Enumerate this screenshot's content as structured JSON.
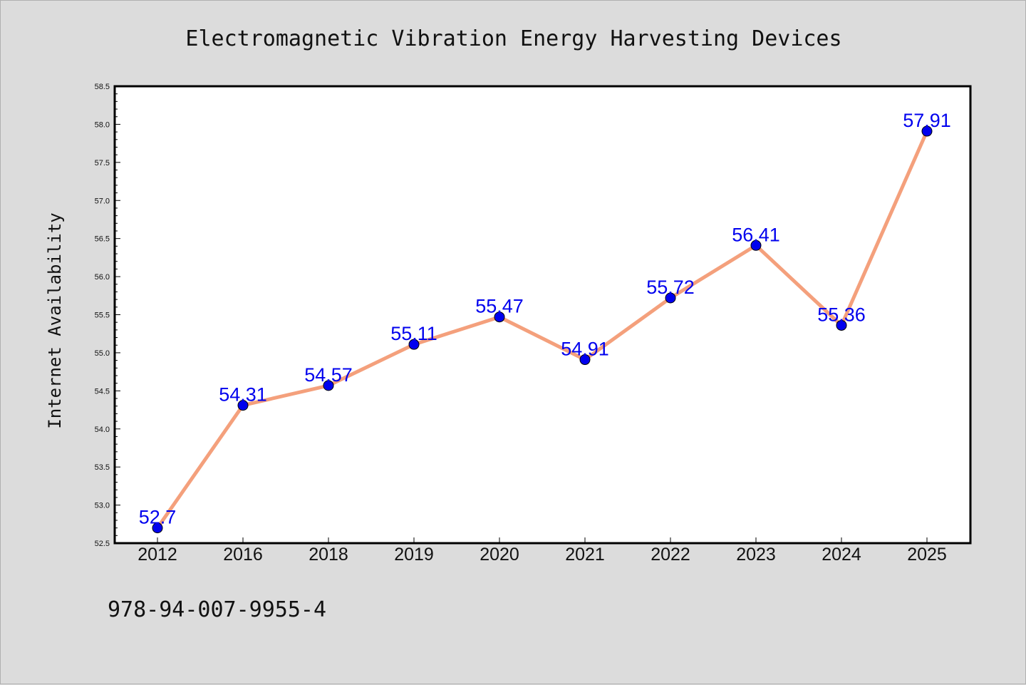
{
  "chart_data": {
    "type": "line",
    "title": "Electromagnetic Vibration Energy Harvesting Devices",
    "xlabel": "",
    "ylabel": "Internet Availability",
    "categories": [
      "2012",
      "2016",
      "2018",
      "2019",
      "2020",
      "2021",
      "2022",
      "2023",
      "2024",
      "2025"
    ],
    "values": [
      52.7,
      54.31,
      54.57,
      55.11,
      55.47,
      54.91,
      55.72,
      56.41,
      55.36,
      57.91
    ],
    "data_labels": [
      "52.7",
      "54.31",
      "54.57",
      "55.11",
      "55.47",
      "54.91",
      "55.72",
      "56.41",
      "55.36",
      "57.91"
    ],
    "ylim": [
      52.5,
      58.5
    ],
    "yticks": [
      "52.5",
      "53.0",
      "53.5",
      "54.0",
      "54.5",
      "55.0",
      "55.5",
      "56.0",
      "56.5",
      "57.0",
      "57.5",
      "58.0",
      "58.5"
    ],
    "grid": false,
    "legend": "none",
    "line_color": "#f4a07c",
    "marker_color": "#0000ee",
    "label_color": "#0000ee",
    "background": "#dcdcdc",
    "plot_background": "#ffffff"
  },
  "footer": {
    "text": "978-94-007-9955-4"
  }
}
